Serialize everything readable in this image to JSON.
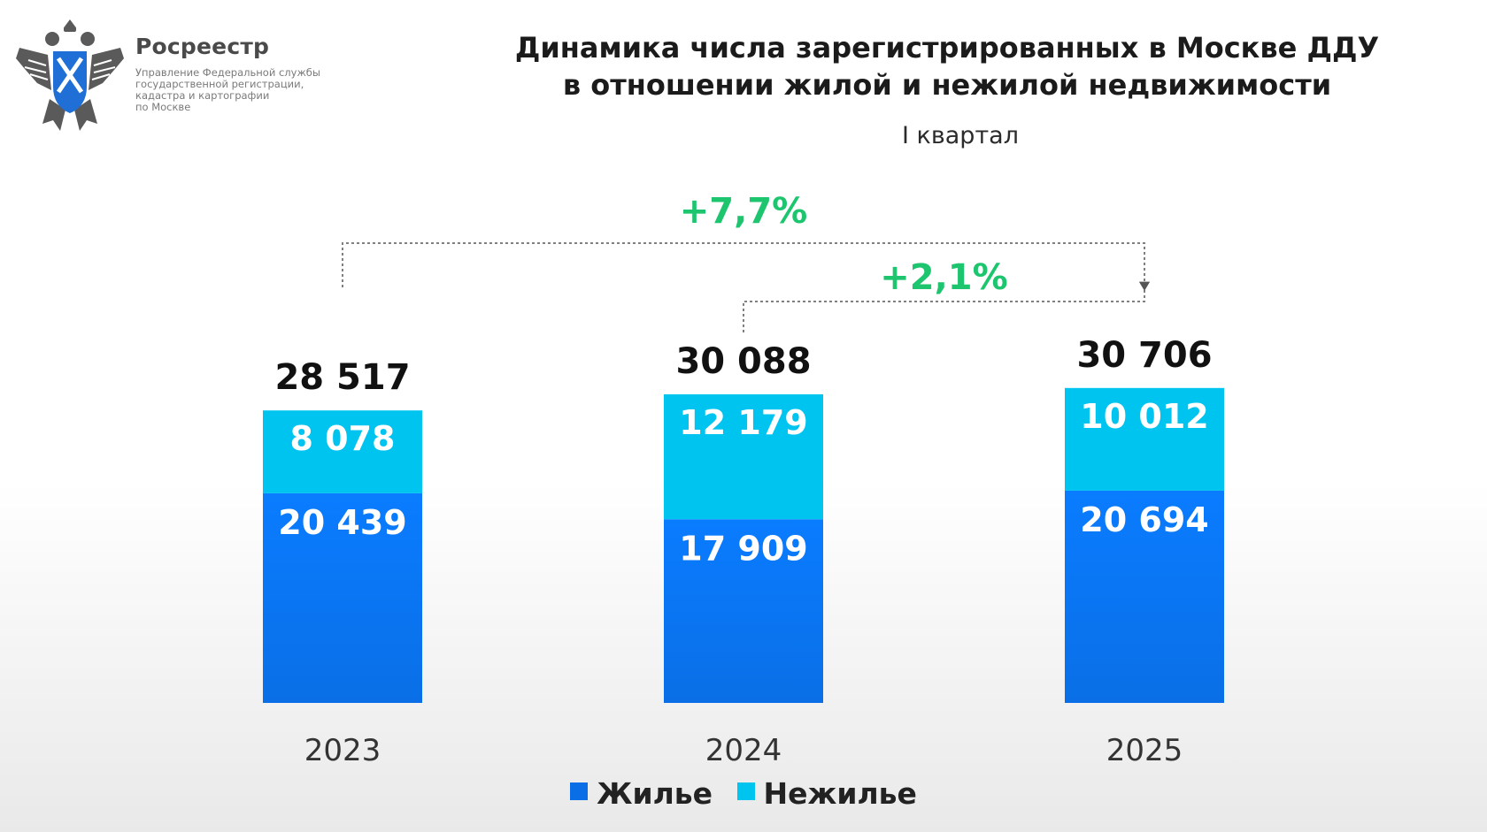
{
  "header": {
    "brand": "Росреестр",
    "brand_sub": [
      "Управление Федеральной службы",
      "государственной регистрации,",
      "кадастра и картографии",
      "по Москве"
    ],
    "title_lines": [
      "Динамика числа зарегистрированных в Москве ДДУ",
      "в отношении жилой и нежилой недвижимости"
    ],
    "subtitle": "I квартал"
  },
  "colors": {
    "residential": "#0a6fe6",
    "nonresidential": "#00c4f0",
    "growth": "#1cc56e",
    "bracket": "#808080"
  },
  "chart_data": {
    "type": "bar",
    "stacked": true,
    "categories": [
      "2023",
      "2024",
      "2025"
    ],
    "series": [
      {
        "name": "Жилье",
        "values": [
          20439,
          17909,
          20694
        ],
        "labels": [
          "20 439",
          "17 909",
          "20 694"
        ]
      },
      {
        "name": "Нежилье",
        "values": [
          8078,
          12179,
          10012
        ],
        "labels": [
          "8 078",
          "12 179",
          "10 012"
        ]
      }
    ],
    "totals": [
      28517,
      30088,
      30706
    ],
    "total_labels": [
      "28 517",
      "30 088",
      "30 706"
    ],
    "annotations": [
      {
        "text": "+7,7%",
        "from": "2023",
        "to": "2025"
      },
      {
        "text": "+2,1%",
        "from": "2024",
        "to": "2025"
      }
    ],
    "legend_position": "bottom",
    "grid": false
  }
}
